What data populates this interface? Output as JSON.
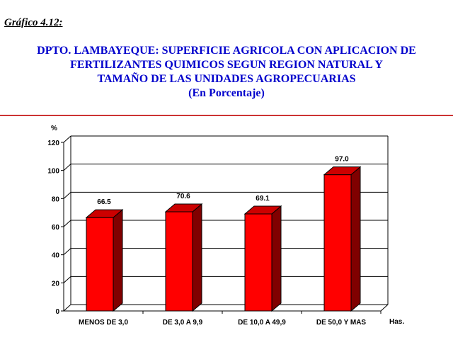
{
  "caption": "Gráfico  4.12:",
  "title_lines": [
    "DPTO. LAMBAYEQUE: SUPERFICIE AGRICOLA CON APLICACION DE",
    "FERTILIZANTES QUIMICOS SEGUN REGION NATURAL Y",
    "TAMAÑO DE LAS UNIDADES AGROPECUARIAS",
    "(En Porcentaje)"
  ],
  "colors": {
    "title": "#0000cc",
    "rule": "#cc3333",
    "bar_front": "#ff0000",
    "bar_side": "#800000",
    "bar_top": "#cc0000"
  },
  "chart_data": {
    "type": "bar",
    "title": "DPTO. LAMBAYEQUE: SUPERFICIE AGRICOLA CON APLICACION DE FERTILIZANTES QUIMICOS SEGUN REGION NATURAL Y TAMAÑO DE LAS UNIDADES AGROPECUARIAS",
    "subtitle": "(En Porcentaje)",
    "ylabel": "%",
    "xlabel": "Has.",
    "categories": [
      "MENOS DE 3,0",
      "DE 3,0 A 9,9",
      "DE 10,0 A 49,9",
      "DE 50,0 Y MAS"
    ],
    "values": [
      66.5,
      70.6,
      69.1,
      97.0
    ],
    "value_labels": [
      "66.5",
      "70.6",
      "69.1",
      "97.0"
    ],
    "ylim": [
      0,
      120
    ],
    "yticks": [
      "0",
      "20",
      "40",
      "60",
      "80",
      "100",
      "120"
    ],
    "grid": true,
    "legend": "none",
    "style": "3d"
  }
}
